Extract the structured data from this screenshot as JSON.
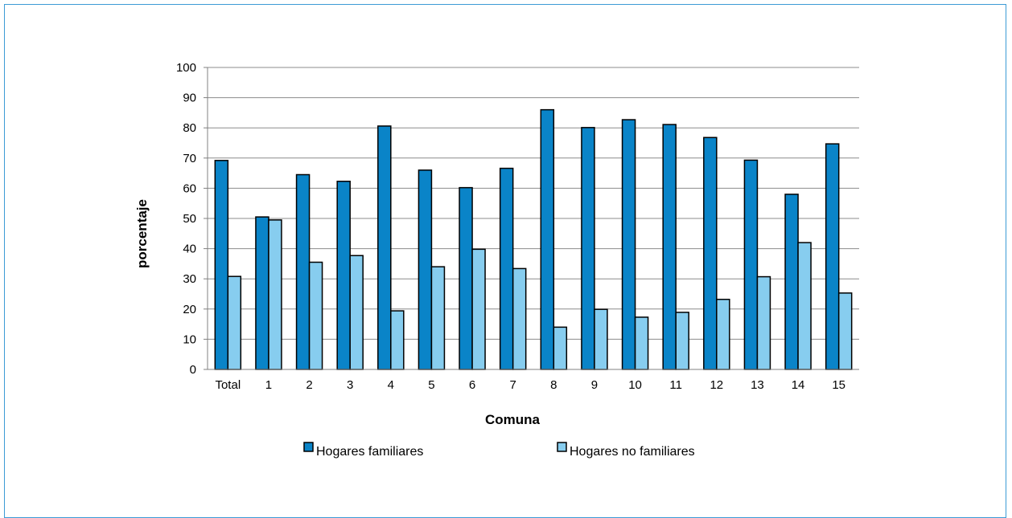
{
  "chart_data": {
    "type": "bar",
    "title": "",
    "xlabel": "Comuna",
    "ylabel": "porcentaje",
    "ylim": [
      0,
      100
    ],
    "yticks": [
      0,
      10,
      20,
      30,
      40,
      50,
      60,
      70,
      80,
      90,
      100
    ],
    "grid": true,
    "legend_position": "bottom",
    "categories": [
      "Total",
      "1",
      "2",
      "3",
      "4",
      "5",
      "6",
      "7",
      "8",
      "9",
      "10",
      "11",
      "12",
      "13",
      "14",
      "15"
    ],
    "series": [
      {
        "name": "Hogares familiares",
        "color": "#0a84c8",
        "values": [
          69.2,
          50.5,
          64.5,
          62.3,
          80.6,
          66.0,
          60.2,
          66.6,
          86.0,
          80.1,
          82.7,
          81.1,
          76.8,
          69.3,
          58.0,
          74.7
        ]
      },
      {
        "name": "Hogares no familiares",
        "color": "#87cdef",
        "values": [
          30.8,
          49.5,
          35.5,
          37.7,
          19.4,
          34.0,
          39.8,
          33.4,
          14.0,
          19.9,
          17.3,
          18.9,
          23.2,
          30.7,
          42.0,
          25.3
        ]
      }
    ]
  }
}
